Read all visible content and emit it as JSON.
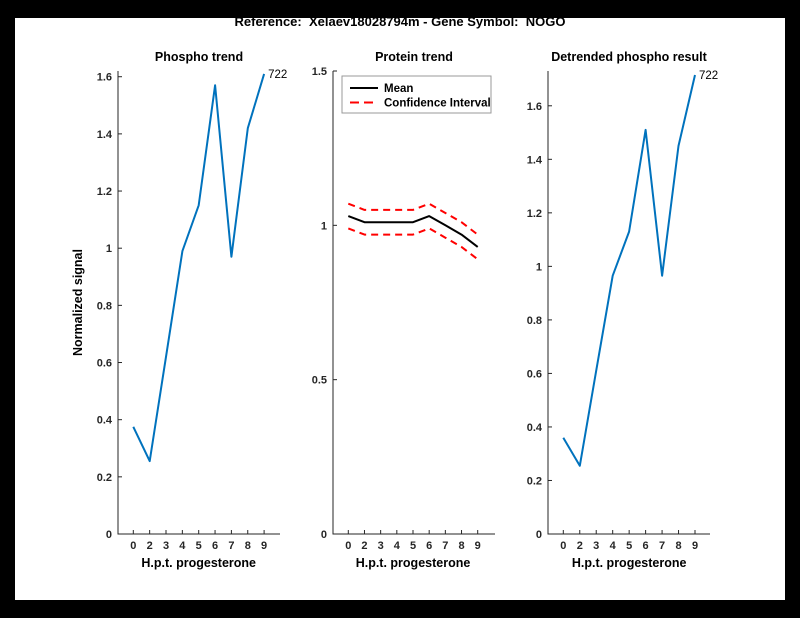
{
  "figure": {
    "title": "Reference:  Xelaev18028794m - Gene Symbol:  NOGO",
    "background_color": "#000000",
    "canvas_color": "#ffffff",
    "axis_color": "#262626",
    "blue_line_color": "#0072BD",
    "red_dash_color": "#ff0000"
  },
  "chart_data": [
    {
      "type": "line",
      "title": "Phospho trend",
      "xlabel": "H.p.t. progesterone",
      "ylabel": "Normalized signal",
      "x_ticklabels": [
        "0",
        "2",
        "3",
        "4",
        "5",
        "6",
        "7",
        "8",
        "9"
      ],
      "y_ticks": [
        0,
        0.2,
        0.4,
        0.6,
        0.8,
        1,
        1.2,
        1.4,
        1.6
      ],
      "y_ticklabels": [
        "0",
        "0.2",
        "0.4",
        "0.6",
        "0.8",
        "1",
        "1.2",
        "1.4",
        "1.6"
      ],
      "ylim": [
        0,
        1.62
      ],
      "grid": false,
      "series": [
        {
          "name": "phospho signal",
          "color": "#0072BD",
          "dash": null,
          "width": 2,
          "in_legend": false,
          "values": [
            0.375,
            0.255,
            0.62,
            0.99,
            1.15,
            1.57,
            0.97,
            1.42,
            1.61
          ]
        }
      ],
      "annotation": {
        "text": "722",
        "at_last_point": true
      }
    },
    {
      "type": "line",
      "title": "Protein trend",
      "xlabel": "H.p.t. progesterone",
      "ylabel": "",
      "x_ticklabels": [
        "0",
        "2",
        "3",
        "4",
        "5",
        "6",
        "7",
        "8",
        "9"
      ],
      "y_ticks": [
        0,
        0.5,
        1,
        1.5
      ],
      "y_ticklabels": [
        "0",
        "0.5",
        "1",
        "1.5"
      ],
      "ylim": [
        0,
        1.5
      ],
      "grid": false,
      "legend": {
        "position": "top-left",
        "entries": [
          "Mean",
          "Confidence Interval"
        ]
      },
      "series": [
        {
          "name": "Mean",
          "color": "#000000",
          "dash": null,
          "width": 2,
          "in_legend": true,
          "values": [
            1.03,
            1.01,
            1.01,
            1.01,
            1.01,
            1.03,
            1.0,
            0.97,
            0.93
          ]
        },
        {
          "name": "Confidence Interval",
          "color": "#ff0000",
          "dash": "7 5",
          "width": 2,
          "in_legend": true,
          "values": [
            1.07,
            1.05,
            1.05,
            1.05,
            1.05,
            1.07,
            1.04,
            1.01,
            0.97
          ]
        },
        {
          "name": "Confidence Interval lower",
          "color": "#ff0000",
          "dash": "7 5",
          "width": 2,
          "in_legend": false,
          "values": [
            0.99,
            0.97,
            0.97,
            0.97,
            0.97,
            0.99,
            0.96,
            0.93,
            0.89
          ]
        }
      ]
    },
    {
      "type": "line",
      "title": "Detrended phospho result",
      "xlabel": "H.p.t. progesterone",
      "ylabel": "",
      "x_ticklabels": [
        "0",
        "2",
        "3",
        "4",
        "5",
        "6",
        "7",
        "8",
        "9"
      ],
      "y_ticks": [
        0,
        0.2,
        0.4,
        0.6,
        0.8,
        1,
        1.2,
        1.4,
        1.6
      ],
      "y_ticklabels": [
        "0",
        "0.2",
        "0.4",
        "0.6",
        "0.8",
        "1",
        "1.2",
        "1.4",
        "1.6"
      ],
      "ylim": [
        0,
        1.73
      ],
      "grid": false,
      "series": [
        {
          "name": "detrended phospho",
          "color": "#0072BD",
          "dash": null,
          "width": 2,
          "in_legend": false,
          "values": [
            0.36,
            0.255,
            0.61,
            0.965,
            1.13,
            1.51,
            0.965,
            1.45,
            1.715
          ]
        }
      ],
      "annotation": {
        "text": "722",
        "at_last_point": true
      }
    }
  ]
}
